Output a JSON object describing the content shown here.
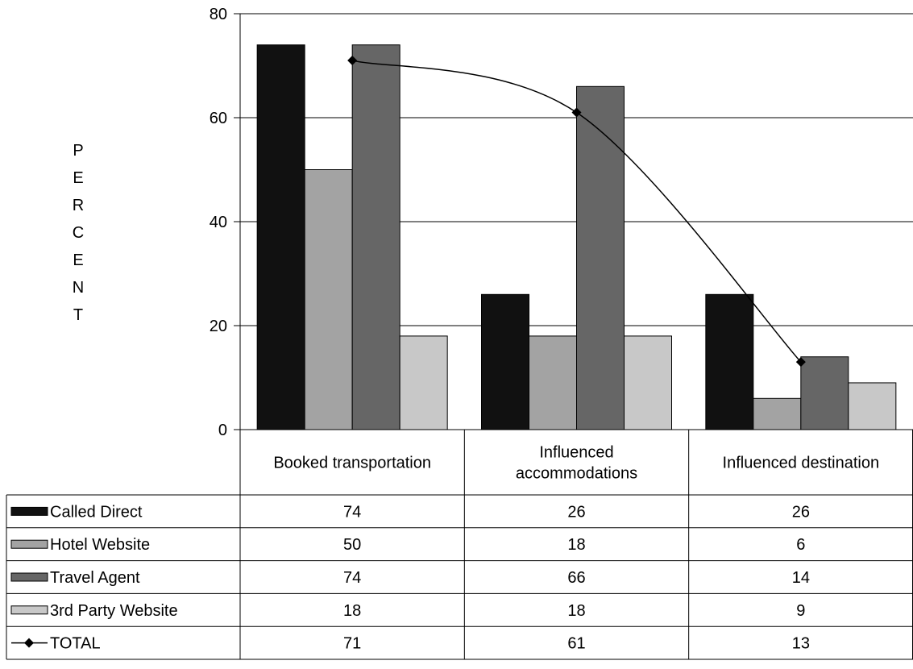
{
  "chart_data": {
    "type": "bar",
    "categories": [
      [
        "Booked transportation"
      ],
      [
        "Influenced",
        "accommodations"
      ],
      [
        "Influenced destination"
      ]
    ],
    "ylabel": "PERCENT",
    "ylim": [
      0,
      80
    ],
    "yticks": [
      0,
      20,
      40,
      60,
      80
    ],
    "grid": true,
    "legend": "table-left",
    "series": [
      {
        "name": "Called Direct",
        "type": "bar",
        "color": "#111111",
        "values": [
          74,
          26,
          26
        ]
      },
      {
        "name": "Hotel Website",
        "type": "bar",
        "color": "#a3a3a3",
        "values": [
          50,
          18,
          6
        ]
      },
      {
        "name": "Travel Agent",
        "type": "bar",
        "color": "#666666",
        "values": [
          74,
          66,
          14
        ]
      },
      {
        "name": "3rd Party Website",
        "type": "bar",
        "color": "#c8c8c8",
        "values": [
          18,
          18,
          9
        ]
      },
      {
        "name": "TOTAL",
        "type": "line",
        "color": "#000000",
        "values": [
          71,
          61,
          13
        ]
      }
    ]
  }
}
